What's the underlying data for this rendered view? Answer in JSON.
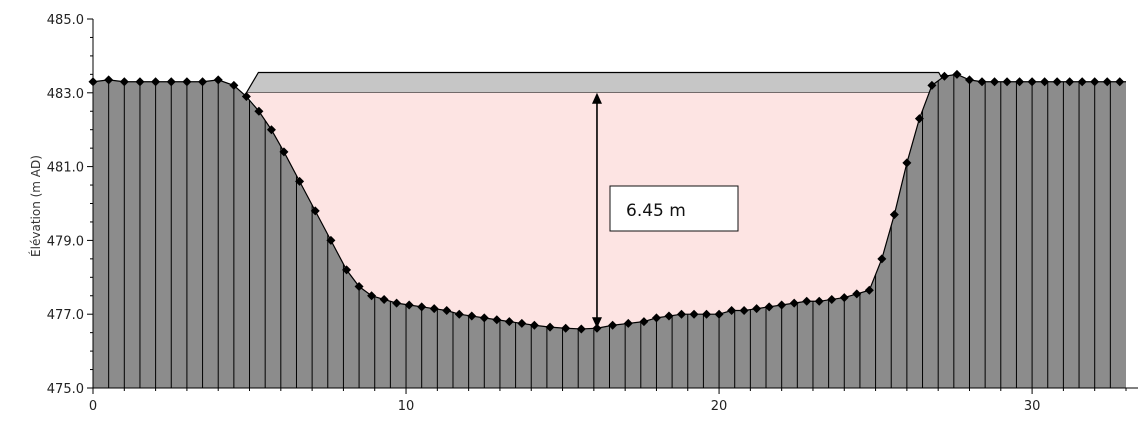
{
  "chart_data": {
    "type": "area",
    "ylabel": "Élévation (m AD)",
    "xlabel": "",
    "xlim": [
      0,
      33
    ],
    "ylim": [
      475,
      485
    ],
    "x_ticks": [
      0,
      10,
      20,
      30
    ],
    "y_ticks": [
      475.0,
      477.0,
      479.0,
      481.0,
      483.0,
      485.0
    ],
    "x_tick_labels": [
      "0",
      "10",
      "20",
      "30"
    ],
    "y_tick_labels": [
      "475.0",
      "477.0",
      "479.0",
      "481.0",
      "483.0",
      "485.0"
    ],
    "series": [
      {
        "x": [
          0,
          0.5,
          1,
          1.5,
          2,
          2.5,
          3,
          3.5,
          4,
          4.5,
          4.9,
          5.3,
          5.7,
          6.1,
          6.6,
          7.1,
          7.6,
          8.1,
          8.5,
          8.9,
          9.3,
          9.7,
          10.1,
          10.5,
          10.9,
          11.3,
          11.7,
          12.1,
          12.5,
          12.9,
          13.3,
          13.7,
          14.1,
          14.6,
          15.1,
          15.6,
          16.1,
          16.6,
          17.1,
          17.6,
          18.0,
          18.4,
          18.8,
          19.2,
          19.6,
          20.0,
          20.4,
          20.8,
          21.2,
          21.6,
          22.0,
          22.4,
          22.8,
          23.2,
          23.6,
          24.0,
          24.4,
          24.8,
          25.2,
          25.6,
          26.0,
          26.4,
          26.8,
          27.2,
          27.6,
          28.0,
          28.4,
          28.8,
          29.2,
          29.6,
          30.0,
          30.4,
          30.8,
          31.2,
          31.6,
          32.0,
          32.4,
          32.8
        ],
        "y": [
          483.3,
          483.35,
          483.3,
          483.3,
          483.3,
          483.3,
          483.3,
          483.3,
          483.35,
          483.2,
          482.9,
          482.5,
          482.0,
          481.4,
          480.6,
          479.8,
          479.0,
          478.2,
          477.75,
          477.5,
          477.4,
          477.3,
          477.25,
          477.2,
          477.15,
          477.1,
          477.0,
          476.95,
          476.9,
          476.85,
          476.8,
          476.75,
          476.7,
          476.65,
          476.62,
          476.6,
          476.62,
          476.7,
          476.75,
          476.8,
          476.9,
          476.95,
          477.0,
          477.0,
          477.0,
          477.0,
          477.1,
          477.1,
          477.15,
          477.2,
          477.25,
          477.3,
          477.35,
          477.35,
          477.4,
          477.45,
          477.55,
          477.65,
          478.5,
          479.7,
          481.1,
          482.3,
          483.2,
          483.45,
          483.5,
          483.35,
          483.3,
          483.3,
          483.3,
          483.3,
          483.3,
          483.3,
          483.3,
          483.3,
          483.3,
          483.3,
          483.3,
          483.3
        ]
      }
    ],
    "water_level": 483.0,
    "structure_top": 483.55,
    "structure_extent": [
      4.9,
      27.4
    ],
    "marker_x": 16.1,
    "annotation": "6.45 m",
    "colors": {
      "ground_fill": "#8c8c8c",
      "ground_hatch": "#000000",
      "water_fill": "#fde4e3",
      "structure_fill": "#c6c6c6",
      "marker": "#000000",
      "axis": "#000000"
    },
    "grid": false
  }
}
